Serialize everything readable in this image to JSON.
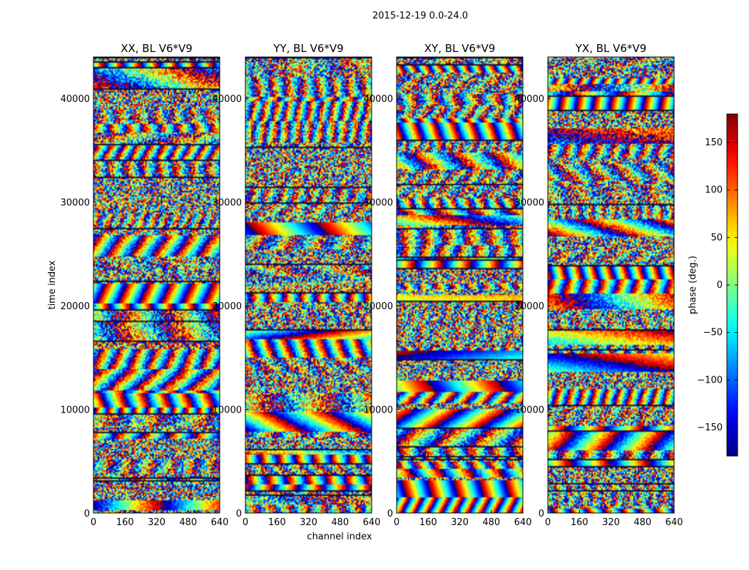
{
  "chart_data": {
    "type": "heatmap",
    "suptitle": "2015-12-19 0.0-24.0",
    "xlabel": "channel index",
    "ylabel": "time index",
    "xlim": [
      0,
      640
    ],
    "ylim": [
      0,
      44000
    ],
    "xticks": [
      "0",
      "160",
      "320",
      "480",
      "640"
    ],
    "yticks": [
      "0",
      "10000",
      "20000",
      "30000",
      "40000"
    ],
    "panels": [
      {
        "title": "XX, BL V6*V9",
        "pol": "XX"
      },
      {
        "title": "YY, BL V6*V9",
        "pol": "YY"
      },
      {
        "title": "XY, BL V6*V9",
        "pol": "XY"
      },
      {
        "title": "YX, BL V6*V9",
        "pol": "YX"
      }
    ],
    "colorbar": {
      "label": "phase (deg.)",
      "range": [
        -180,
        180
      ],
      "ticks": [
        "150",
        "100",
        "50",
        "0",
        "−50",
        "−100",
        "−150"
      ],
      "colormap": "jet"
    }
  }
}
